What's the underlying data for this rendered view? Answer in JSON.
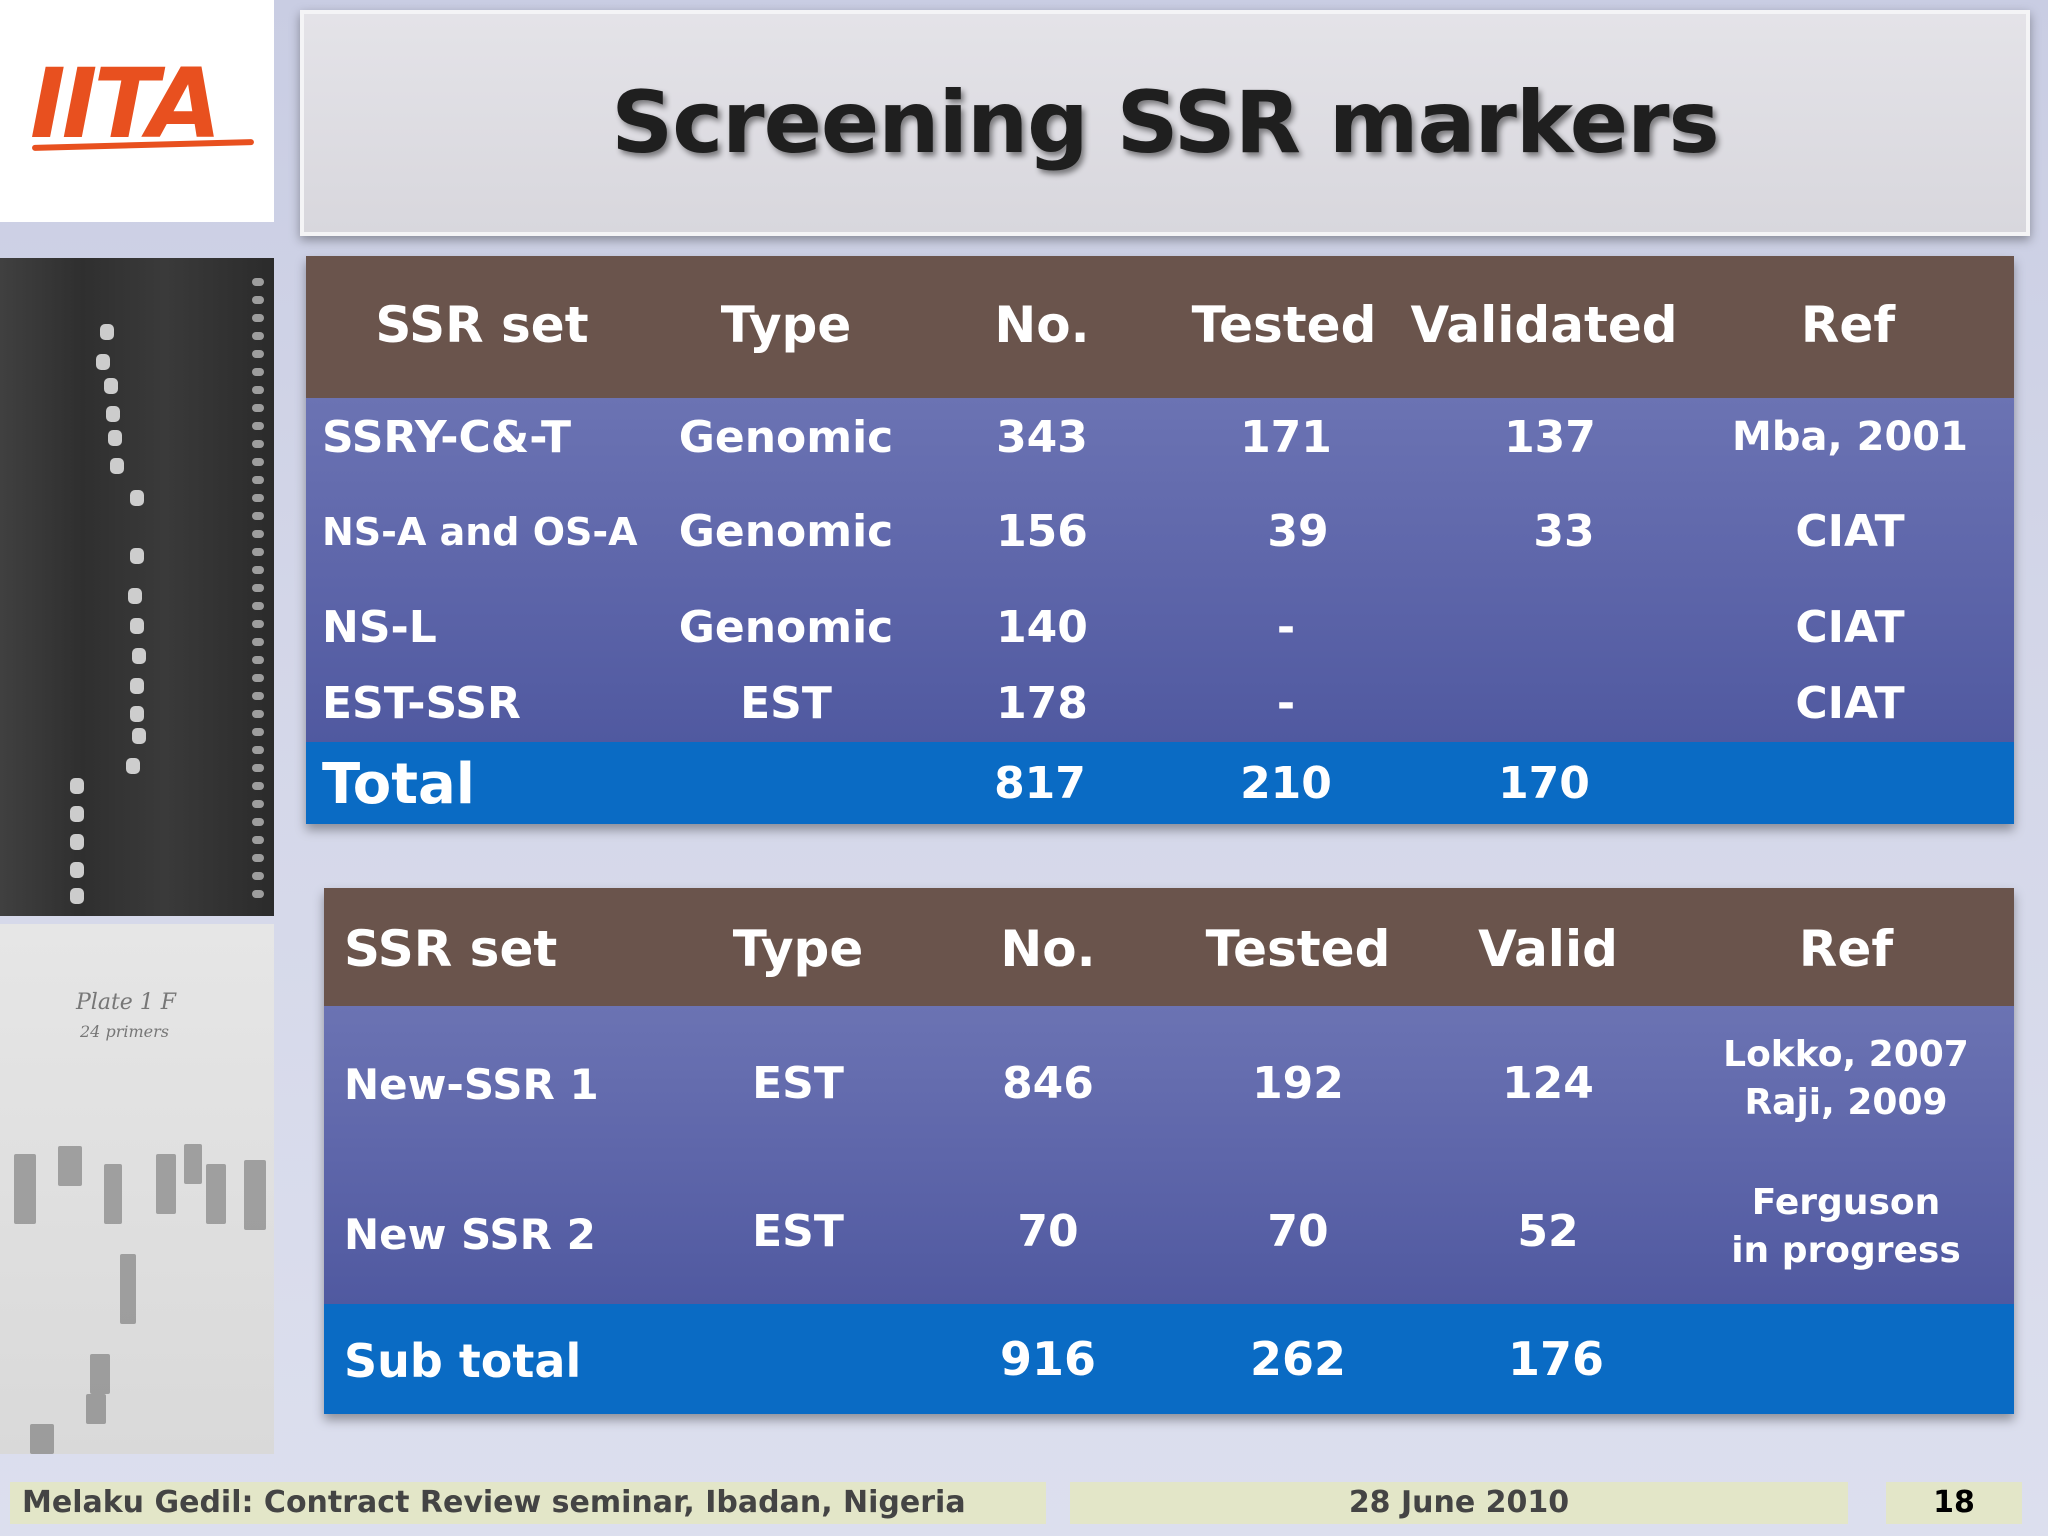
{
  "logo": {
    "text": "IITA"
  },
  "title": "Screening SSR markers",
  "table1": {
    "headers": [
      "SSR set",
      "Type",
      "No.",
      "Tested",
      "Validated",
      "Ref"
    ],
    "rows": [
      [
        "SSRY-C&-T",
        "Genomic",
        "343",
        "171",
        "137",
        "Mba, 2001"
      ],
      [
        "NS-A and OS-A",
        "Genomic",
        "156",
        "39",
        "33",
        "CIAT"
      ],
      [
        "NS-L",
        "Genomic",
        "140",
        "-",
        "",
        "CIAT"
      ],
      [
        "EST-SSR",
        "EST",
        "178",
        "-",
        "",
        "CIAT"
      ]
    ],
    "total": {
      "label": "Total",
      "no": "817",
      "tested": "210",
      "validated": "170"
    }
  },
  "table2": {
    "headers": [
      "SSR set",
      "Type",
      "No.",
      "Tested",
      "Valid",
      "Ref"
    ],
    "rows": [
      {
        "set": "New-SSR 1",
        "type": "EST",
        "no": "846",
        "tested": "192",
        "valid": "124",
        "ref_line1": "Lokko, 2007",
        "ref_line2": "Raji, 2009"
      },
      {
        "set": "New SSR 2",
        "type": "EST",
        "no": "70",
        "tested": "70",
        "valid": "52",
        "ref_line1": "Ferguson",
        "ref_line2": "in progress"
      }
    ],
    "subtotal": {
      "label": "Sub total",
      "no": "916",
      "tested": "262",
      "valid": "176"
    }
  },
  "gel_note": {
    "line1": "Plate 1 F",
    "line2": "24 primers"
  },
  "footer": {
    "left": "Melaku Gedil: Contract Review seminar,  Ibadan, Nigeria",
    "date": "28 June 2010",
    "page": "18"
  },
  "colors": {
    "header_brown": "#6a544c",
    "row_blue": "#5e66aa",
    "total_blue": "#0a6bc4",
    "logo_orange": "#e8501f",
    "footer_bg": "#e3e6c8"
  }
}
